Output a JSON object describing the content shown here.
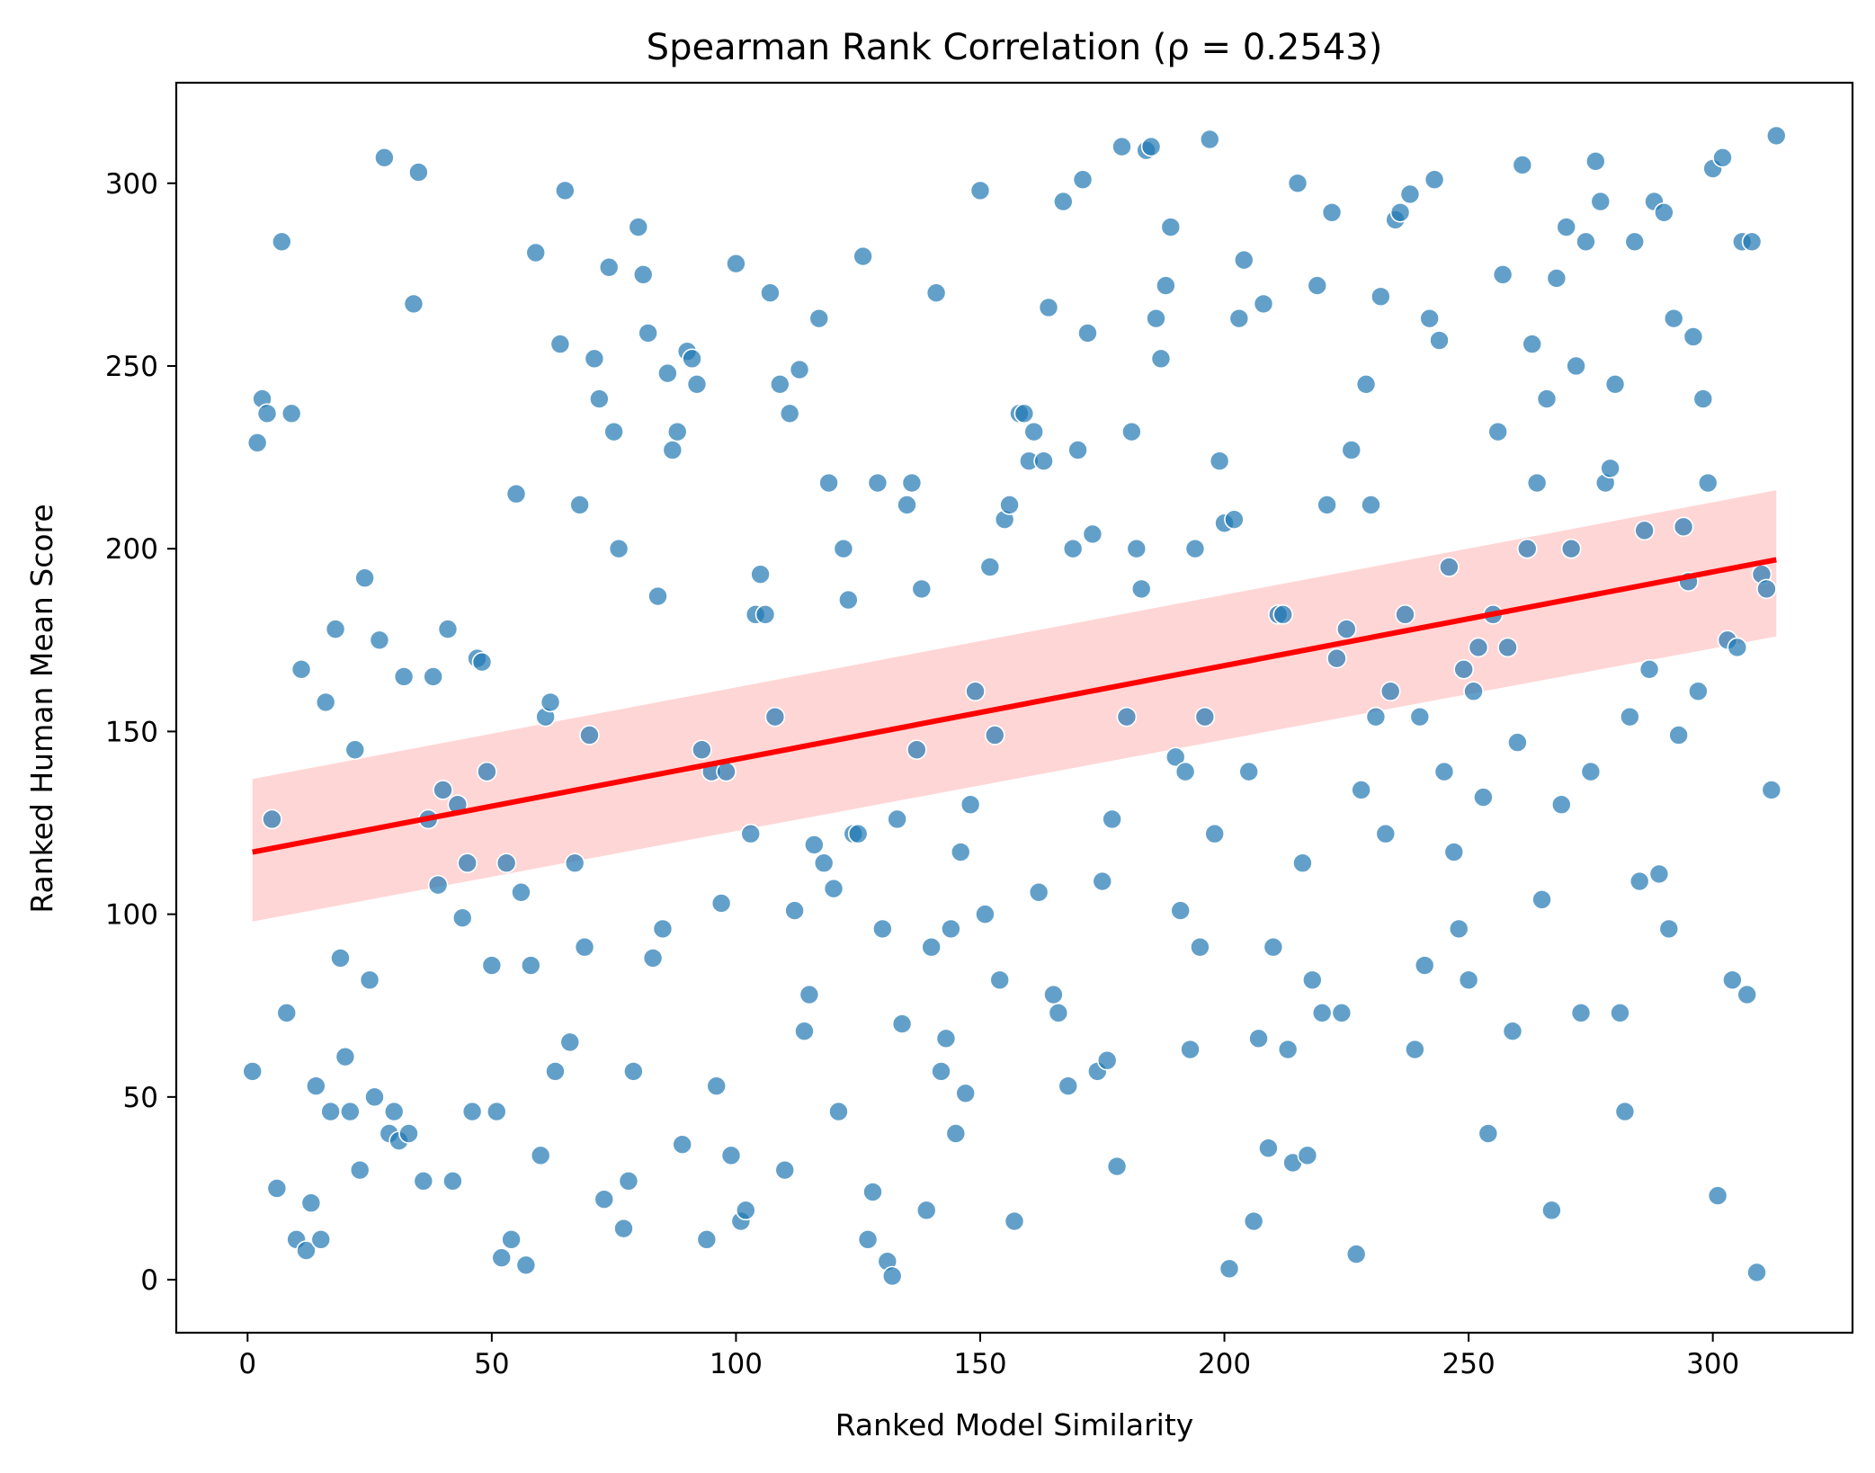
{
  "chart_data": {
    "type": "scatter",
    "title": "Spearman Rank Correlation (ρ = 0.2543)",
    "xlabel": "Ranked Model Similarity",
    "ylabel": "Ranked Human Mean Score",
    "xlim": [
      -14.6,
      328.6
    ],
    "ylim": [
      -14.5,
      327.5
    ],
    "xticks": [
      0,
      50,
      100,
      150,
      200,
      250,
      300
    ],
    "yticks": [
      0,
      50,
      100,
      150,
      200,
      250,
      300
    ],
    "grid": false,
    "legend": "none",
    "colors": {
      "points": "#1f77b4",
      "points_edge": "#ffffff",
      "regression_line": "#ff0000",
      "confidence_band": "#ff0000"
    },
    "series": [
      {
        "type": "scatter",
        "x": [
          1,
          2,
          3,
          4,
          5,
          6,
          7,
          8,
          9,
          10,
          11,
          12,
          13,
          14,
          15,
          16,
          17,
          18,
          19,
          20,
          21,
          22,
          23,
          24,
          25,
          26,
          27,
          28,
          29,
          30,
          31,
          32,
          33,
          34,
          35,
          36,
          37,
          38,
          39,
          40,
          41,
          42,
          43,
          44,
          45,
          46,
          47,
          48,
          49,
          50,
          51,
          52,
          53,
          54,
          55,
          56,
          57,
          58,
          59,
          60,
          61,
          62,
          63,
          64,
          65,
          66,
          67,
          68,
          69,
          70,
          71,
          72,
          73,
          74,
          75,
          76,
          77,
          78,
          79,
          80,
          81,
          82,
          83,
          84,
          85,
          86,
          87,
          88,
          89,
          90,
          91,
          92,
          93,
          94,
          95,
          96,
          97,
          98,
          99,
          100,
          101,
          102,
          103,
          104,
          105,
          106,
          107,
          108,
          109,
          110,
          111,
          112,
          113,
          114,
          115,
          116,
          117,
          118,
          119,
          120,
          121,
          122,
          123,
          124,
          125,
          126,
          127,
          128,
          129,
          130,
          131,
          132,
          133,
          134,
          135,
          136,
          137,
          138,
          139,
          140,
          141,
          142,
          143,
          144,
          145,
          146,
          147,
          148,
          149,
          150,
          151,
          152,
          153,
          154,
          155,
          156,
          157,
          158,
          159,
          160,
          161,
          162,
          163,
          164,
          165,
          166,
          167,
          168,
          169,
          170,
          171,
          172,
          173,
          174,
          175,
          176,
          177,
          178,
          179,
          180,
          181,
          182,
          183,
          184,
          185,
          186,
          187,
          188,
          189,
          190,
          191,
          192,
          193,
          194,
          195,
          196,
          197,
          198,
          199,
          200,
          201,
          202,
          203,
          204,
          205,
          206,
          207,
          208,
          209,
          210,
          211,
          212,
          213,
          214,
          215,
          216,
          217,
          218,
          219,
          220,
          221,
          222,
          223,
          224,
          225,
          226,
          227,
          228,
          229,
          230,
          231,
          232,
          233,
          234,
          235,
          236,
          237,
          238,
          239,
          240,
          241,
          242,
          243,
          244,
          245,
          246,
          247,
          248,
          249,
          250,
          251,
          252,
          253,
          254,
          255,
          256,
          257,
          258,
          259,
          260,
          261,
          262,
          263,
          264,
          265,
          266,
          267,
          268,
          269,
          270,
          271,
          272,
          273,
          274,
          275,
          276,
          277,
          278,
          279,
          280,
          281,
          282,
          283,
          284,
          285,
          286,
          287,
          288,
          289,
          290,
          291,
          292,
          293,
          294,
          295,
          296,
          297,
          298,
          299,
          300,
          301,
          302,
          303,
          304,
          305,
          306,
          307,
          308,
          309,
          310,
          311,
          312,
          313
        ],
        "y": [
          57,
          229,
          241,
          237,
          126,
          25,
          284,
          73,
          237,
          11,
          167,
          8,
          21,
          53,
          11,
          158,
          46,
          178,
          88,
          61,
          46,
          145,
          30,
          192,
          82,
          50,
          175,
          307,
          40,
          46,
          38,
          165,
          40,
          267,
          303,
          27,
          126,
          165,
          108,
          134,
          178,
          27,
          130,
          99,
          114,
          46,
          170,
          169,
          139,
          86,
          46,
          6,
          114,
          11,
          215,
          106,
          4,
          86,
          281,
          34,
          154,
          158,
          57,
          256,
          298,
          65,
          114,
          212,
          91,
          149,
          252,
          241,
          22,
          277,
          232,
          200,
          14,
          27,
          57,
          288,
          275,
          259,
          88,
          187,
          96,
          248,
          227,
          232,
          37,
          254,
          252,
          245,
          145,
          11,
          139,
          53,
          103,
          139,
          34,
          278,
          16,
          19,
          122,
          182,
          193,
          182,
          270,
          154,
          245,
          30,
          237,
          101,
          249,
          68,
          78,
          119,
          263,
          114,
          218,
          107,
          46,
          200,
          186,
          122,
          122,
          280,
          11,
          24,
          218,
          96,
          5,
          1,
          126,
          70,
          212,
          218,
          145,
          189,
          19,
          91,
          270,
          57,
          66,
          96,
          40,
          117,
          51,
          130,
          161,
          298,
          100,
          195,
          149,
          82,
          208,
          212,
          16,
          237,
          237,
          224,
          232,
          106,
          224,
          266,
          78,
          73,
          295,
          53,
          200,
          227,
          301,
          259,
          204,
          57,
          109,
          60,
          126,
          31,
          310,
          154,
          232,
          200,
          189,
          309,
          310,
          263,
          252,
          272,
          288,
          143,
          101,
          139,
          63,
          200,
          91,
          154,
          312,
          122,
          224,
          207,
          3,
          208,
          263,
          279,
          139,
          16,
          66,
          267,
          36,
          91,
          182,
          182,
          63,
          32,
          300,
          114,
          34,
          82,
          272,
          73,
          212,
          292,
          170,
          73,
          178,
          227,
          7,
          134,
          245,
          212,
          154,
          269,
          122,
          161,
          290,
          292,
          182,
          297,
          63,
          154,
          86,
          263,
          301,
          257,
          139,
          195,
          117,
          96,
          167,
          82,
          161,
          173,
          132,
          40,
          182,
          232,
          275,
          173,
          68,
          147,
          305,
          200,
          256,
          218,
          104,
          241,
          19,
          274,
          130,
          288,
          200,
          250,
          73,
          284,
          139,
          306,
          295,
          218,
          222,
          245,
          73,
          46,
          154,
          284,
          109,
          205,
          167,
          295,
          111,
          292,
          96,
          263,
          149,
          206,
          191,
          258,
          161,
          241,
          218,
          304,
          23,
          307,
          175,
          82,
          173,
          284,
          78,
          284,
          2,
          193,
          189,
          134,
          313
        ]
      },
      {
        "type": "line",
        "name": "",
        "x": [
          1,
          313
        ],
        "y": [
          117,
          197
        ]
      }
    ],
    "confidence_band": {
      "x": [
        1,
        313
      ],
      "lower": [
        98,
        176
      ],
      "upper": [
        137,
        216
      ]
    }
  }
}
